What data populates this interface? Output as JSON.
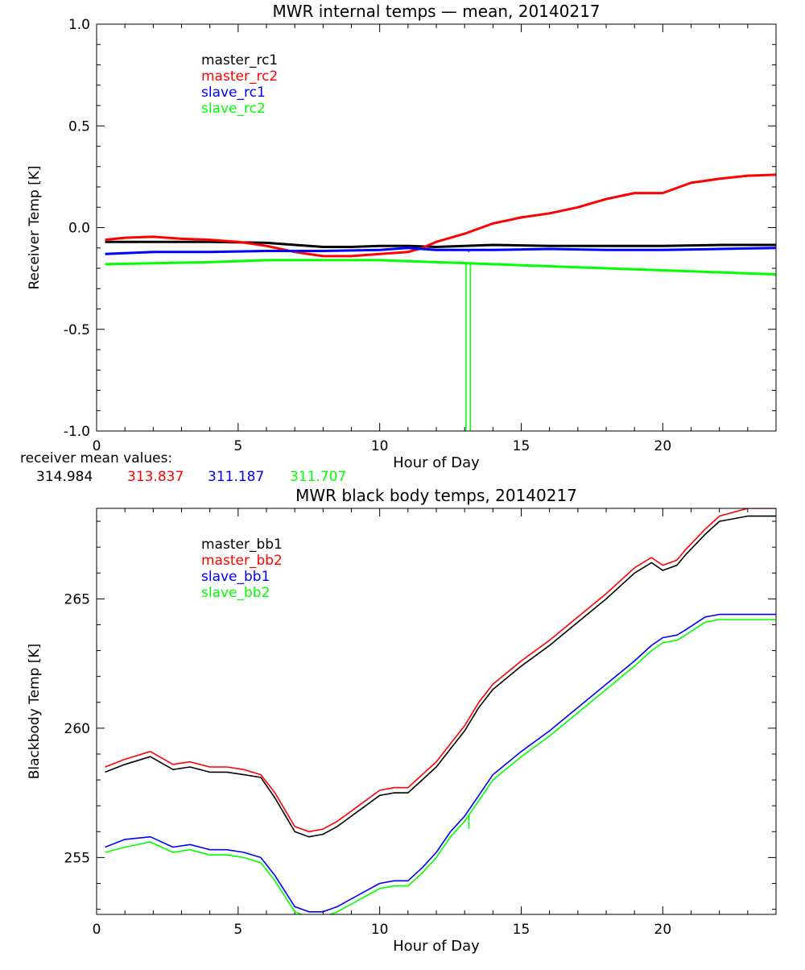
{
  "colors": {
    "black": "#000000",
    "red": "#ff0000",
    "blue": "#0000ff",
    "green": "#00ff00"
  },
  "receiver_mean": {
    "label": "receiver mean values:",
    "values": [
      {
        "text": "314.984",
        "color": "#000000"
      },
      {
        "text": "313.837",
        "color": "#ff0000"
      },
      {
        "text": "311.187",
        "color": "#0000ff"
      },
      {
        "text": "311.707",
        "color": "#00ff00"
      }
    ]
  },
  "chart_data": [
    {
      "type": "line",
      "title": "MWR internal temps — mean, 20140217",
      "xlabel": "Hour of Day",
      "ylabel": "Receiver Temp [K]",
      "xlim": [
        0,
        24
      ],
      "ylim": [
        -1.0,
        1.0
      ],
      "xticks": [
        0,
        5,
        10,
        15,
        20
      ],
      "xtick_labels": [
        "0",
        "5",
        "10",
        "15",
        "20"
      ],
      "yticks": [
        -1.0,
        -0.5,
        0.0,
        0.5,
        1.0
      ],
      "ytick_labels": [
        "-1.0",
        "-0.5",
        "0.0",
        "0.5",
        "1.0"
      ],
      "legend_position": "top-left",
      "series": [
        {
          "name": "master_rc1",
          "color": "#000000",
          "x": [
            0.3,
            2,
            4,
            6,
            7,
            8,
            9,
            10,
            11,
            12,
            13,
            14,
            16,
            18,
            20,
            22,
            24
          ],
          "y": [
            -0.07,
            -0.07,
            -0.07,
            -0.075,
            -0.085,
            -0.095,
            -0.095,
            -0.09,
            -0.09,
            -0.095,
            -0.09,
            -0.085,
            -0.09,
            -0.09,
            -0.09,
            -0.085,
            -0.085
          ],
          "spikes": []
        },
        {
          "name": "master_rc2",
          "color": "#ff0000",
          "x": [
            0.3,
            1,
            2,
            3,
            4,
            5,
            6,
            7,
            8,
            9,
            10,
            11,
            11.5,
            12,
            13,
            14,
            15,
            16,
            17,
            18,
            19,
            20,
            21,
            22,
            23,
            24
          ],
          "y": [
            -0.06,
            -0.05,
            -0.045,
            -0.055,
            -0.06,
            -0.07,
            -0.09,
            -0.12,
            -0.14,
            -0.14,
            -0.13,
            -0.12,
            -0.1,
            -0.07,
            -0.03,
            0.02,
            0.05,
            0.07,
            0.1,
            0.14,
            0.17,
            0.17,
            0.22,
            0.24,
            0.255,
            0.26
          ],
          "spikes": []
        },
        {
          "name": "slave_rc1",
          "color": "#0000ff",
          "x": [
            0.3,
            2,
            4,
            6,
            8,
            10,
            11,
            12,
            13,
            14,
            16,
            18,
            20,
            22,
            24
          ],
          "y": [
            -0.13,
            -0.12,
            -0.12,
            -0.115,
            -0.115,
            -0.11,
            -0.1,
            -0.11,
            -0.11,
            -0.11,
            -0.105,
            -0.11,
            -0.11,
            -0.105,
            -0.1
          ],
          "spikes": [
            {
              "x": 13.15,
              "to": -0.12
            }
          ]
        },
        {
          "name": "slave_rc2",
          "color": "#00ff00",
          "x": [
            0.3,
            2,
            4,
            6,
            8,
            10,
            12,
            14,
            16,
            18,
            20,
            22,
            24
          ],
          "y": [
            -0.18,
            -0.175,
            -0.17,
            -0.16,
            -0.16,
            -0.16,
            -0.17,
            -0.18,
            -0.19,
            -0.2,
            -0.21,
            -0.22,
            -0.23
          ],
          "spikes": [
            {
              "x": 13.05,
              "to": -1.0
            },
            {
              "x": 13.2,
              "to": -1.0
            }
          ]
        }
      ]
    },
    {
      "type": "line",
      "title": "MWR black body temps, 20140217",
      "xlabel": "Hour of Day",
      "ylabel": "Blackbody Temp [K]",
      "xlim": [
        0,
        24
      ],
      "ylim": [
        252.8,
        268.5
      ],
      "xticks": [
        0,
        5,
        10,
        15,
        20
      ],
      "xtick_labels": [
        "0",
        "5",
        "10",
        "15",
        "20"
      ],
      "yticks": [
        255,
        260,
        265
      ],
      "ytick_labels": [
        "255",
        "260",
        "265"
      ],
      "legend_position": "top-left",
      "series": [
        {
          "name": "master_bb1",
          "color": "#000000",
          "x": [
            0.3,
            1,
            1.9,
            2.7,
            3.3,
            4,
            4.6,
            5.2,
            5.8,
            6.3,
            7,
            7.5,
            8,
            8.5,
            9,
            9.5,
            10,
            10.5,
            11,
            11.5,
            12,
            12.5,
            13,
            13.5,
            14,
            15,
            16,
            17,
            18,
            19,
            19.6,
            20,
            20.5,
            20.8,
            21.5,
            22,
            23,
            24
          ],
          "y": [
            258.3,
            258.6,
            258.9,
            258.4,
            258.5,
            258.3,
            258.3,
            258.2,
            258.1,
            257.3,
            256.0,
            255.8,
            255.9,
            256.2,
            256.6,
            257.0,
            257.4,
            257.5,
            257.5,
            258.0,
            258.5,
            259.2,
            259.9,
            260.8,
            261.5,
            262.4,
            263.2,
            264.1,
            265.0,
            266.0,
            266.4,
            266.1,
            266.3,
            266.7,
            267.5,
            268.0,
            268.2,
            268.2
          ],
          "spikes": []
        },
        {
          "name": "master_bb2",
          "color": "#ff0000",
          "x": [
            0.3,
            1,
            1.9,
            2.7,
            3.3,
            4,
            4.6,
            5.2,
            5.8,
            6.3,
            7,
            7.5,
            8,
            8.5,
            9,
            9.5,
            10,
            10.5,
            11,
            11.5,
            12,
            12.5,
            13,
            13.5,
            14,
            15,
            16,
            17,
            18,
            19,
            19.6,
            20,
            20.5,
            20.8,
            21.5,
            22,
            23,
            24
          ],
          "y": [
            258.5,
            258.8,
            259.1,
            258.6,
            258.7,
            258.5,
            258.5,
            258.4,
            258.2,
            257.5,
            256.2,
            256.0,
            256.1,
            256.4,
            256.8,
            257.2,
            257.6,
            257.7,
            257.7,
            258.2,
            258.7,
            259.4,
            260.1,
            261.0,
            261.7,
            262.6,
            263.4,
            264.3,
            265.2,
            266.2,
            266.6,
            266.3,
            266.5,
            266.9,
            267.7,
            268.2,
            268.5,
            268.5
          ],
          "spikes": []
        },
        {
          "name": "slave_bb1",
          "color": "#0000ff",
          "x": [
            0.3,
            1,
            1.9,
            2.7,
            3.3,
            4,
            4.6,
            5.2,
            5.8,
            6.3,
            7,
            7.5,
            8,
            8.5,
            9,
            9.5,
            10,
            10.5,
            11,
            11.5,
            12,
            12.5,
            13,
            13.5,
            14,
            15,
            16,
            17,
            18,
            19,
            19.6,
            20,
            20.5,
            20.8,
            21.5,
            22,
            23,
            24
          ],
          "y": [
            255.4,
            255.7,
            255.8,
            255.4,
            255.5,
            255.3,
            255.3,
            255.2,
            255.0,
            254.3,
            253.1,
            252.9,
            252.9,
            253.1,
            253.4,
            253.7,
            254.0,
            254.1,
            254.1,
            254.6,
            255.2,
            256.0,
            256.6,
            257.4,
            258.2,
            259.1,
            259.9,
            260.8,
            261.7,
            262.6,
            263.2,
            263.5,
            263.6,
            263.8,
            264.3,
            264.4,
            264.4,
            264.4
          ],
          "spikes": []
        },
        {
          "name": "slave_bb2",
          "color": "#00ff00",
          "x": [
            0.3,
            1,
            1.9,
            2.7,
            3.3,
            4,
            4.6,
            5.2,
            5.8,
            6.3,
            7,
            7.5,
            8,
            8.5,
            9,
            9.5,
            10,
            10.5,
            11,
            11.5,
            12,
            12.5,
            13,
            13.5,
            14,
            15,
            16,
            17,
            18,
            19,
            19.6,
            20,
            20.5,
            20.8,
            21.5,
            22,
            23,
            24
          ],
          "y": [
            255.2,
            255.4,
            255.6,
            255.2,
            255.3,
            255.1,
            255.1,
            255.0,
            254.8,
            254.1,
            252.9,
            252.7,
            252.7,
            252.9,
            253.2,
            253.5,
            253.8,
            253.9,
            253.9,
            254.4,
            255.0,
            255.8,
            256.4,
            257.2,
            258.0,
            258.9,
            259.7,
            260.6,
            261.5,
            262.4,
            263.0,
            263.3,
            263.4,
            263.6,
            264.1,
            264.2,
            264.2,
            264.2
          ],
          "spikes": [
            {
              "x": 13.15,
              "to": 256.1
            }
          ]
        }
      ]
    }
  ]
}
